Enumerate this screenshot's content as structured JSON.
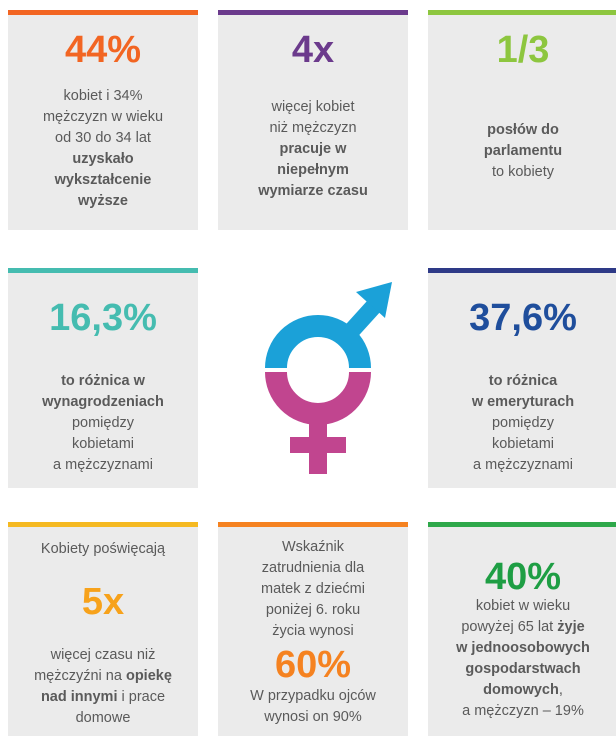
{
  "cards": [
    {
      "stat": "44%",
      "color": "#f26522",
      "bar_color": "#f26522",
      "above": [],
      "below": [
        [
          {
            "text": "kobiet i 34%"
          }
        ],
        [
          {
            "text": "mężczyzn w wieku"
          }
        ],
        [
          {
            "text": "od 30 do 34 lat"
          }
        ],
        [
          {
            "text": "uzyskało",
            "bold": true
          }
        ],
        [
          {
            "text": "wykształcenie",
            "bold": true
          }
        ],
        [
          {
            "text": "wyższe",
            "bold": true
          }
        ]
      ]
    },
    {
      "stat": "4x",
      "color": "#6b3a8c",
      "bar_color": "#6b3a8c",
      "above": [],
      "below": [
        [
          {
            "text": "więcej kobiet"
          }
        ],
        [
          {
            "text": "niż mężczyzn"
          }
        ],
        [
          {
            "text": "pracuje w",
            "bold": true
          }
        ],
        [
          {
            "text": "niepełnym",
            "bold": true
          }
        ],
        [
          {
            "text": "wymiarze czasu",
            "bold": true
          }
        ]
      ]
    },
    {
      "stat": "1/3",
      "color": "#8dc63f",
      "bar_color": "#8dc63f",
      "above": [],
      "below": [
        [
          {
            "text": "posłów do",
            "bold": true
          }
        ],
        [
          {
            "text": "parlamentu",
            "bold": true
          }
        ],
        [
          {
            "text": "to kobiety"
          }
        ]
      ]
    },
    {
      "stat": "16,3%",
      "color": "#45bcb0",
      "bar_color": "#45bcb0",
      "above": [],
      "below": [
        [
          {
            "text": "to różnica w",
            "bold": true
          }
        ],
        [
          {
            "text": "wynagrodzeniach",
            "bold": true
          }
        ],
        [
          {
            "text": "pomiędzy"
          }
        ],
        [
          {
            "text": "kobietami"
          }
        ],
        [
          {
            "text": "a mężczyznami"
          }
        ]
      ]
    },
    {
      "stat": "37,6%",
      "color": "#1f4e9c",
      "bar_color": "#2e3a87",
      "above": [],
      "below": [
        [
          {
            "text": "to różnica",
            "bold": true
          }
        ],
        [
          {
            "text": "w emeryturach",
            "bold": true
          }
        ],
        [
          {
            "text": "pomiędzy"
          }
        ],
        [
          {
            "text": "kobietami"
          }
        ],
        [
          {
            "text": "a mężczyznami"
          }
        ]
      ]
    },
    {
      "stat": "5x",
      "color": "#f7a21b",
      "bar_color": "#f5b921",
      "above": [
        [
          {
            "text": "Kobiety poświęcają"
          }
        ]
      ],
      "below": [
        [
          {
            "text": "więcej czasu niż"
          }
        ],
        [
          {
            "text": "mężczyźni na "
          },
          {
            "text": "opiekę",
            "bold": true
          }
        ],
        [
          {
            "text": "nad innymi",
            "bold": true
          },
          {
            "text": " i prace"
          }
        ],
        [
          {
            "text": "domowe"
          }
        ]
      ]
    },
    {
      "stat": "60%",
      "color": "#f58220",
      "bar_color": "#f58220",
      "above": [
        [
          {
            "text": "Wskaźnik"
          }
        ],
        [
          {
            "text": "zatrudnienia dla"
          }
        ],
        [
          {
            "text": "matek z dziećmi"
          }
        ],
        [
          {
            "text": "poniżej 6. roku"
          }
        ],
        [
          {
            "text": "życia wynosi"
          }
        ]
      ],
      "below": [
        [
          {
            "text": "W przypadku ojców"
          }
        ],
        [
          {
            "text": "wynosi on 90%"
          }
        ]
      ]
    },
    {
      "stat": "40%",
      "color": "#1e9e44",
      "bar_color": "#2ea84a",
      "above": [],
      "below": [
        [
          {
            "text": "kobiet w wieku"
          }
        ],
        [
          {
            "text": "powyżej 65 lat "
          },
          {
            "text": "żyje",
            "bold": true
          }
        ],
        [
          {
            "text": "w jednoosobowych",
            "bold": true
          }
        ],
        [
          {
            "text": "gospodarstwach",
            "bold": true
          }
        ],
        [
          {
            "text": "domowych",
            "bold": true
          },
          {
            "text": ","
          }
        ],
        [
          {
            "text": "a mężczyzn – 19%"
          }
        ]
      ]
    }
  ]
}
